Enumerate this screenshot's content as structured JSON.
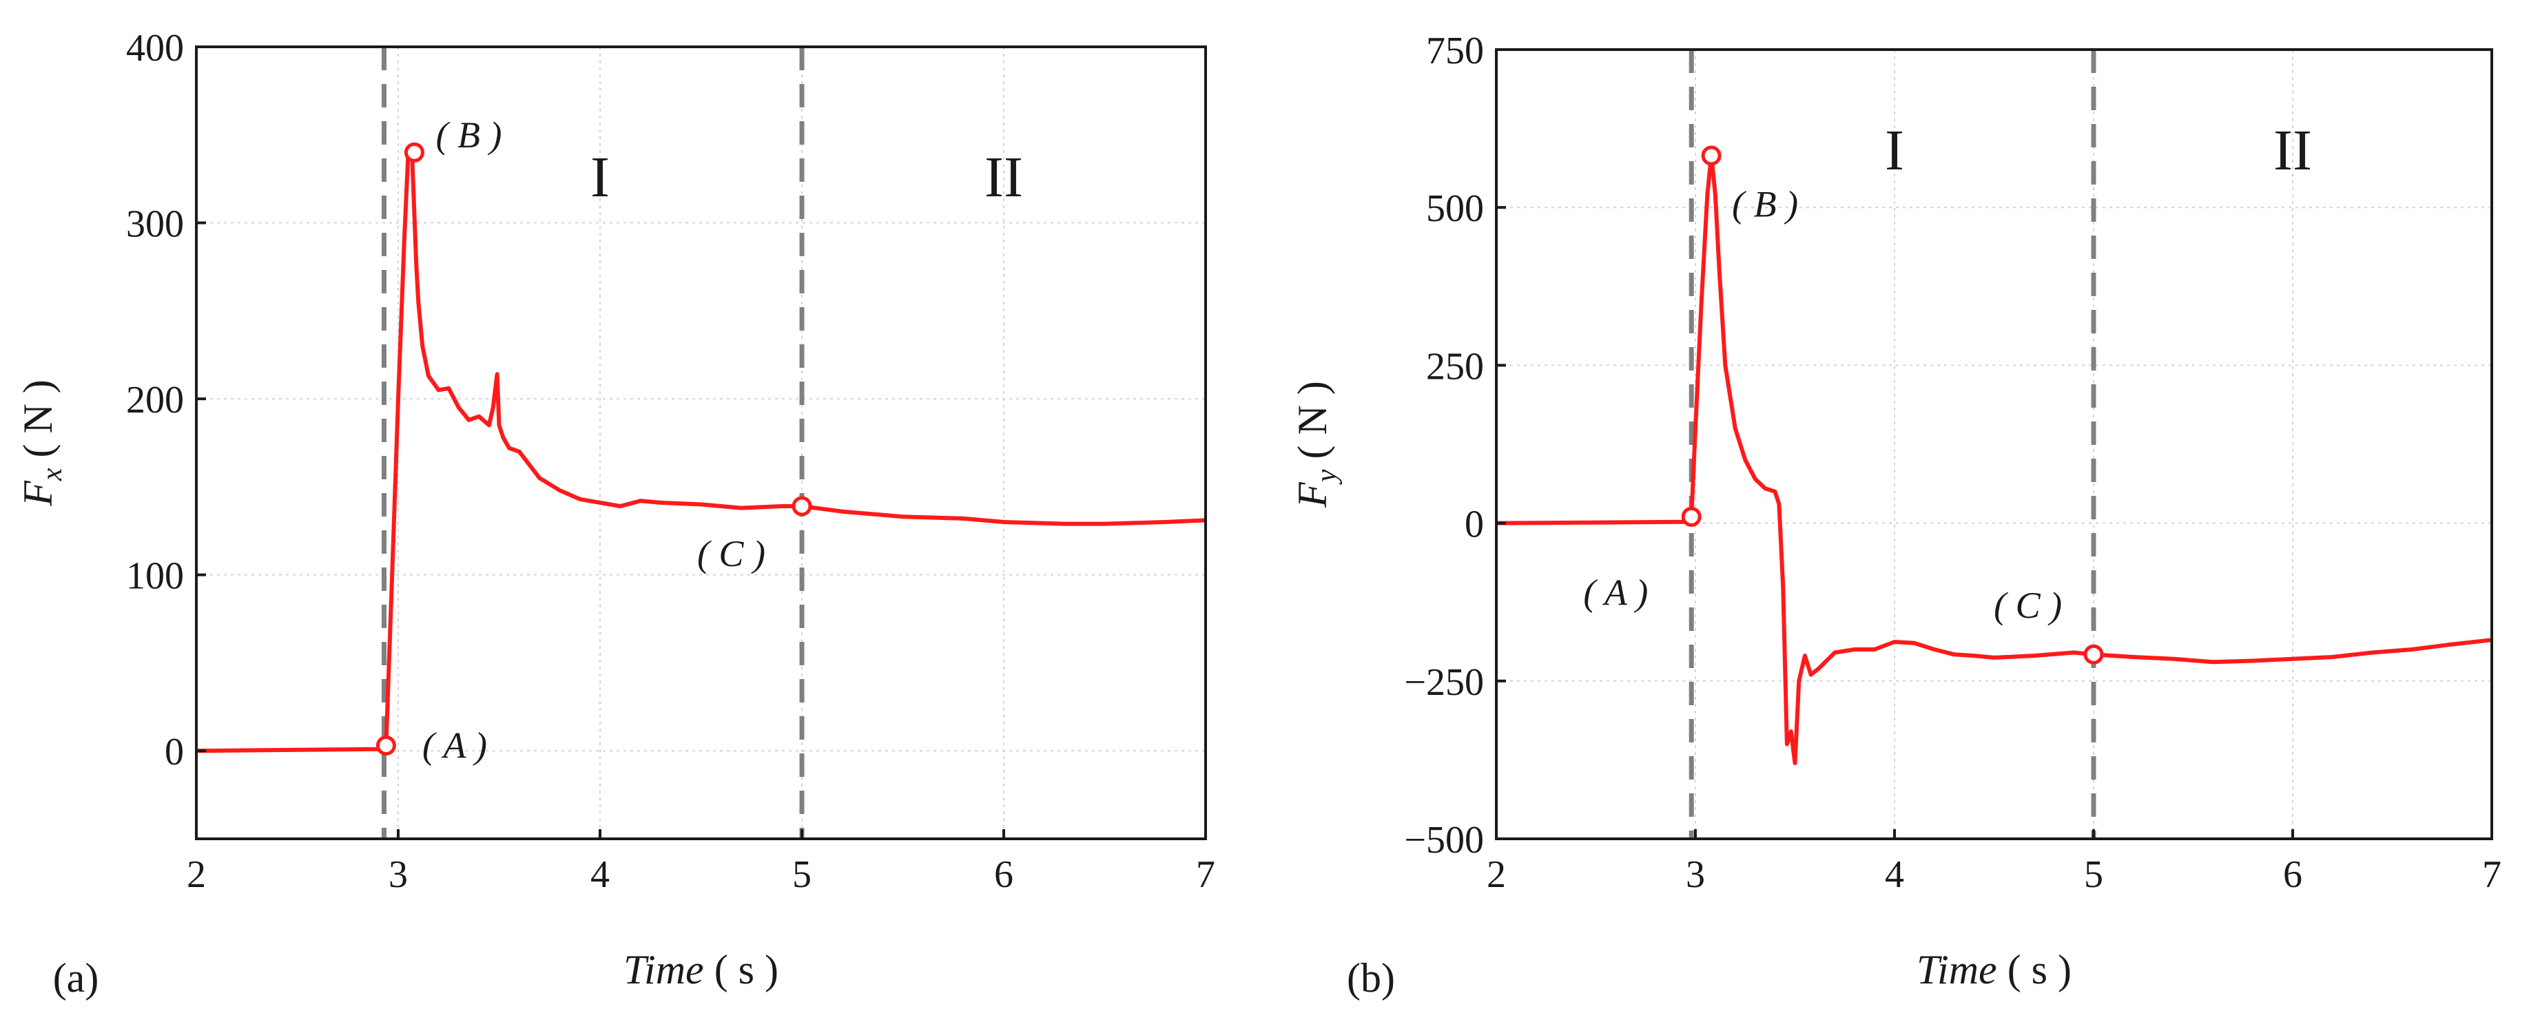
{
  "chart_data": [
    {
      "type": "line",
      "panel_label": "(a)",
      "xlabel_italic": "Time",
      "xlabel_unit": " ( s )",
      "ylabel_main": "F",
      "ylabel_sub": "x",
      "ylabel_unit": " ( N )",
      "xlim": [
        2,
        7
      ],
      "ylim": [
        -50,
        400
      ],
      "xticks": [
        2,
        3,
        4,
        5,
        6,
        7
      ],
      "yticks": [
        0,
        100,
        200,
        300,
        400
      ],
      "grid": true,
      "vlines": [
        2.93,
        5.0
      ],
      "regions": [
        {
          "label": "I",
          "x": 4.0,
          "y": 315
        },
        {
          "label": "II",
          "x": 6.0,
          "y": 315
        }
      ],
      "points": [
        {
          "label": "( A )",
          "x": 2.94,
          "y": 3,
          "label_x": 3.28,
          "label_y": 3
        },
        {
          "label": "( B )",
          "x": 3.08,
          "y": 340,
          "label_x": 3.35,
          "label_y": 350
        },
        {
          "label": "( C )",
          "x": 5.0,
          "y": 139,
          "label_x": 4.65,
          "label_y": 112
        }
      ],
      "series": [
        {
          "color": "#ff1a1a",
          "x": [
            2.0,
            2.9,
            2.94,
            2.97,
            3.0,
            3.03,
            3.05,
            3.07,
            3.09,
            3.1,
            3.12,
            3.15,
            3.2,
            3.25,
            3.3,
            3.35,
            3.4,
            3.45,
            3.47,
            3.49,
            3.5,
            3.52,
            3.55,
            3.6,
            3.7,
            3.8,
            3.9,
            4.0,
            4.1,
            4.2,
            4.3,
            4.5,
            4.7,
            4.9,
            5.0,
            5.2,
            5.5,
            5.8,
            6.0,
            6.3,
            6.5,
            6.8,
            7.0
          ],
          "y": [
            0,
            1,
            3,
            100,
            200,
            290,
            340,
            335,
            275,
            255,
            230,
            213,
            205,
            206,
            195,
            188,
            190,
            185,
            195,
            214,
            185,
            178,
            172,
            170,
            155,
            148,
            143,
            141,
            139,
            142,
            141,
            140,
            138,
            139,
            139,
            136,
            133,
            132,
            130,
            129,
            129,
            130,
            131
          ]
        }
      ]
    },
    {
      "type": "line",
      "panel_label": "(b)",
      "xlabel_italic": "Time",
      "xlabel_unit": " ( s )",
      "ylabel_main": "F",
      "ylabel_sub": "y",
      "ylabel_unit": " ( N )",
      "xlim": [
        2,
        7
      ],
      "ylim": [
        -500,
        750
      ],
      "xticks": [
        2,
        3,
        4,
        5,
        6,
        7
      ],
      "yticks": [
        -500,
        -250,
        0,
        250,
        500,
        750
      ],
      "grid": true,
      "vlines": [
        2.98,
        5.0
      ],
      "regions": [
        {
          "label": "I",
          "x": 4.0,
          "y": 560
        },
        {
          "label": "II",
          "x": 6.0,
          "y": 560
        }
      ],
      "points": [
        {
          "label": "( A )",
          "x": 2.98,
          "y": 10,
          "label_x": 2.6,
          "label_y": -110
        },
        {
          "label": "( B )",
          "x": 3.08,
          "y": 582,
          "label_x": 3.35,
          "label_y": 505
        },
        {
          "label": "( C )",
          "x": 5.0,
          "y": -208,
          "label_x": 4.67,
          "label_y": -130
        }
      ],
      "series": [
        {
          "color": "#ff1a1a",
          "x": [
            2.0,
            2.95,
            2.98,
            3.0,
            3.03,
            3.06,
            3.08,
            3.1,
            3.12,
            3.15,
            3.2,
            3.25,
            3.3,
            3.35,
            3.4,
            3.42,
            3.44,
            3.46,
            3.48,
            3.5,
            3.52,
            3.55,
            3.58,
            3.62,
            3.7,
            3.8,
            3.9,
            4.0,
            4.1,
            4.2,
            4.3,
            4.4,
            4.5,
            4.7,
            4.9,
            5.0,
            5.2,
            5.4,
            5.6,
            5.8,
            6.0,
            6.2,
            6.4,
            6.6,
            6.8,
            7.0
          ],
          "y": [
            0,
            2,
            10,
            150,
            350,
            520,
            582,
            520,
            400,
            250,
            150,
            100,
            70,
            55,
            50,
            30,
            -100,
            -350,
            -330,
            -380,
            -250,
            -210,
            -240,
            -230,
            -205,
            -200,
            -200,
            -188,
            -190,
            -200,
            -208,
            -210,
            -213,
            -210,
            -205,
            -208,
            -212,
            -215,
            -220,
            -218,
            -215,
            -212,
            -205,
            -200,
            -192,
            -185
          ]
        }
      ]
    }
  ]
}
